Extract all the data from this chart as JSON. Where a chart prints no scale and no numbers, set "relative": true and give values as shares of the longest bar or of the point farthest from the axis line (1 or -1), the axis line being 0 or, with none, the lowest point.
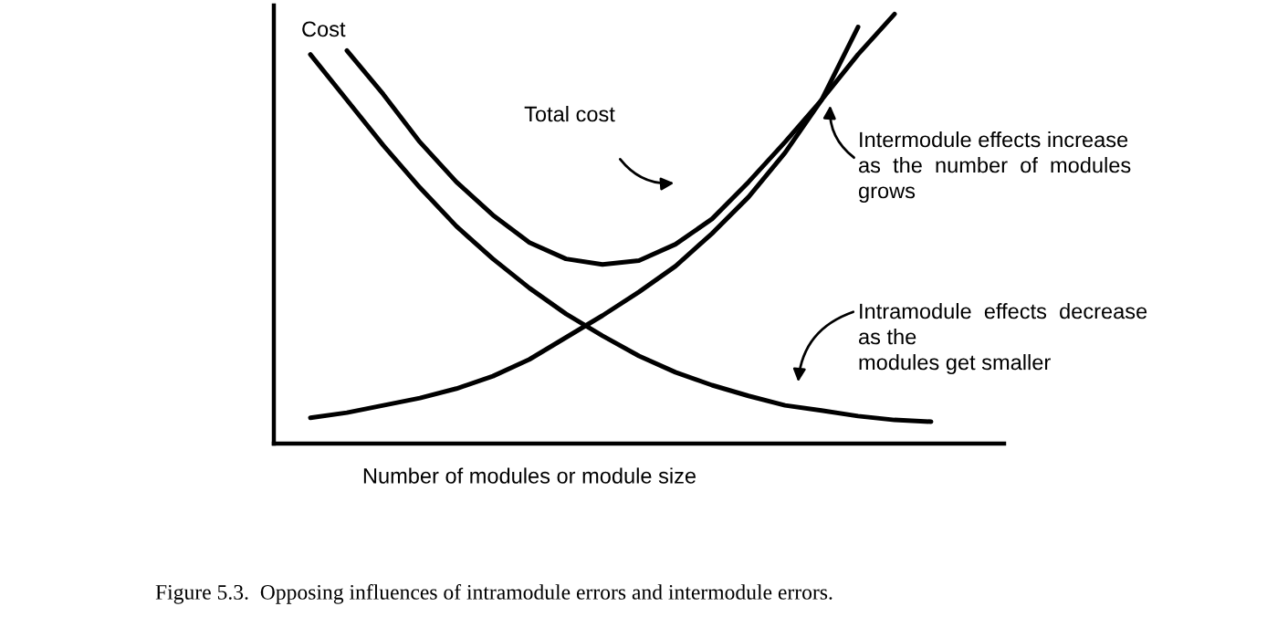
{
  "chart_data": {
    "type": "line",
    "relative": true,
    "ylabel": "Cost",
    "xlabel": "Number of modules or module size",
    "categories": [
      null,
      null,
      null,
      null,
      null,
      null,
      null,
      null,
      null,
      null,
      null,
      null,
      null,
      null,
      null,
      null,
      null,
      null,
      null
    ],
    "series": [
      {
        "color": "#000000",
        "values": [
          0.906,
          0.8,
          0.694,
          0.596,
          0.506,
          0.43,
          0.362,
          0.302,
          0.251,
          0.204,
          0.166,
          0.136,
          0.111,
          0.089,
          0.077,
          0.064,
          0.055,
          0.051,
          null
        ]
      },
      {
        "color": "#000000",
        "values": [
          0.06,
          0.072,
          0.089,
          0.106,
          0.128,
          0.157,
          0.196,
          0.247,
          0.298,
          0.353,
          0.413,
          0.489,
          0.574,
          0.677,
          0.8,
          0.97,
          null,
          null,
          null
        ]
      },
      {
        "color": "#000000",
        "values": [
          null,
          0.915,
          0.813,
          0.702,
          0.609,
          0.532,
          0.468,
          0.43,
          0.417,
          0.426,
          0.464,
          0.523,
          0.609,
          0.702,
          0.8,
          0.906,
          1.0,
          null,
          null
        ]
      }
    ],
    "annotations": [
      "Total cost",
      "Intermodule effects increase\nas  the  number  of  modules\ngrows",
      "Intramodule  effects  decrease\nas the\nmodules get smaller",
      "Figure 5.3.  Opposing influences of intramodule errors and intermodule errors."
    ],
    "grid": false,
    "legend": false,
    "marker": "none",
    "line_style": "solid"
  }
}
